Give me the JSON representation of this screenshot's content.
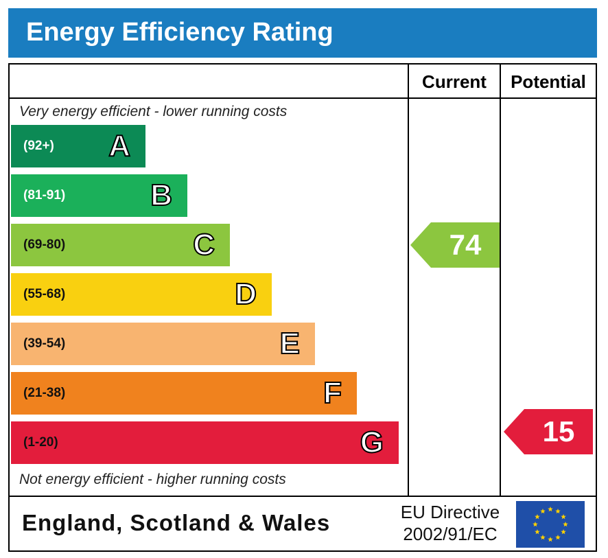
{
  "title": "Energy Efficiency Rating",
  "columns": {
    "current": "Current",
    "potential": "Potential"
  },
  "captions": {
    "top": "Very energy efficient - lower running costs",
    "bottom": "Not energy efficient - higher running costs"
  },
  "chart_data": {
    "type": "bar",
    "title": "Energy Efficiency Rating",
    "categories": [
      "A",
      "B",
      "C",
      "D",
      "E",
      "F",
      "G"
    ],
    "series": [
      {
        "name": "Current",
        "values": [
          null,
          null,
          74,
          null,
          null,
          null,
          null
        ]
      },
      {
        "name": "Potential",
        "values": [
          null,
          null,
          null,
          null,
          null,
          null,
          15
        ]
      }
    ]
  },
  "bands": [
    {
      "letter": "A",
      "range": "(92+)",
      "color": "#0c8a55",
      "text_color": "#ffffff"
    },
    {
      "letter": "B",
      "range": "(81-91)",
      "color": "#1bb05a",
      "text_color": "#ffffff"
    },
    {
      "letter": "C",
      "range": "(69-80)",
      "color": "#8cc63f",
      "text_color": "#111111"
    },
    {
      "letter": "D",
      "range": "(55-68)",
      "color": "#f9d010",
      "text_color": "#111111"
    },
    {
      "letter": "E",
      "range": "(39-54)",
      "color": "#f8b470",
      "text_color": "#111111"
    },
    {
      "letter": "F",
      "range": "(21-38)",
      "color": "#f0821e",
      "text_color": "#111111"
    },
    {
      "letter": "G",
      "range": "(1-20)",
      "color": "#e31d3c",
      "text_color": "#111111"
    }
  ],
  "ratings": {
    "current": {
      "value": 74,
      "band": "C",
      "color": "#8cc63f"
    },
    "potential": {
      "value": 15,
      "band": "G",
      "color": "#e31d3c"
    }
  },
  "footer": {
    "region": "England, Scotland & Wales",
    "directive_line1": "EU Directive",
    "directive_line2": "2002/91/EC",
    "flag_icon": "eu-flag-icon"
  }
}
